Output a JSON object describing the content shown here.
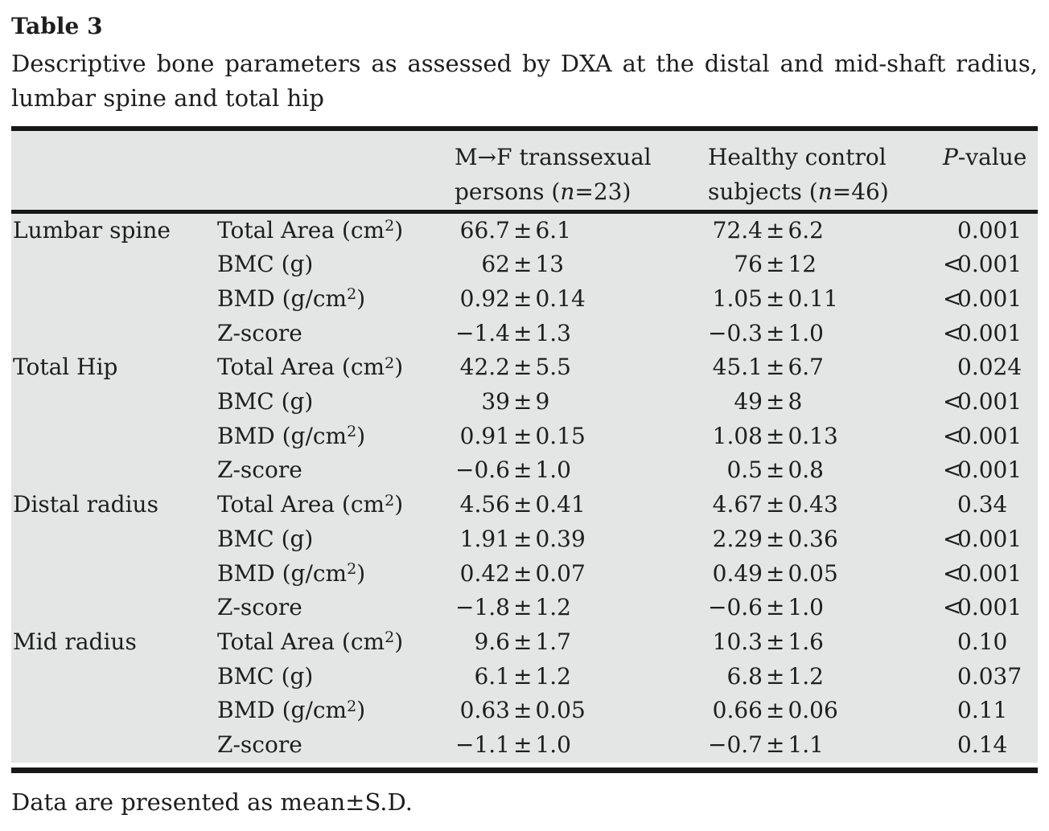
{
  "page": {
    "title": "Table 3",
    "caption_line1": "Descriptive bone parameters as assessed by DXA at the distal and mid-shaft radius,",
    "caption_line2": "lumbar spine and total hip",
    "footnote": "Data are presented as mean±S.D."
  },
  "colors": {
    "table_background": "#e4e5e5",
    "rule": "#171717",
    "text": "#1e1e1e",
    "page_background": "#ffffff"
  },
  "table": {
    "headers": {
      "site": "",
      "parameter": "",
      "mtf_line1": "M→F transsexual",
      "mtf_line2": "persons (*n*=23)",
      "control_line1": "Healthy control",
      "control_line2": "subjects (*n*=46)",
      "pvalue": "*P*-value"
    },
    "groups": [
      {
        "site": "Lumbar spine",
        "rows": [
          {
            "parameter": "Total Area (cm^2)",
            "mtf": "66.7±6.1",
            "control": "72.4±6.2",
            "p": "0.001"
          },
          {
            "parameter": "BMC (g)",
            "mtf": "62±13",
            "control": "76±12",
            "p": "<0.001"
          },
          {
            "parameter": "BMD (g/cm^2)",
            "mtf": "0.92±0.14",
            "control": "1.05±0.11",
            "p": "<0.001"
          },
          {
            "parameter": "Z-score",
            "mtf": "−1.4±1.3",
            "control": "−0.3±1.0",
            "p": "<0.001"
          }
        ]
      },
      {
        "site": "Total Hip",
        "rows": [
          {
            "parameter": "Total Area (cm^2)",
            "mtf": "42.2±5.5",
            "control": "45.1±6.7",
            "p": "0.024"
          },
          {
            "parameter": "BMC (g)",
            "mtf": "39±9",
            "control": "49±8",
            "p": "<0.001"
          },
          {
            "parameter": "BMD (g/cm^2)",
            "mtf": "0.91±0.15",
            "control": "1.08±0.13",
            "p": "<0.001"
          },
          {
            "parameter": "Z-score",
            "mtf": "−0.6±1.0",
            "control": "0.5±0.8",
            "p": "<0.001"
          }
        ]
      },
      {
        "site": "Distal radius",
        "rows": [
          {
            "parameter": "Total Area (cm^2)",
            "mtf": "4.56±0.41",
            "control": "4.67±0.43",
            "p": "0.34"
          },
          {
            "parameter": "BMC (g)",
            "mtf": "1.91±0.39",
            "control": "2.29±0.36",
            "p": "<0.001"
          },
          {
            "parameter": "BMD (g/cm^2)",
            "mtf": "0.42±0.07",
            "control": "0.49±0.05",
            "p": "<0.001"
          },
          {
            "parameter": "Z-score",
            "mtf": "−1.8±1.2",
            "control": "−0.6±1.0",
            "p": "<0.001"
          }
        ]
      },
      {
        "site": "Mid radius",
        "rows": [
          {
            "parameter": "Total Area (cm^2)",
            "mtf": "9.6±1.7",
            "control": "10.3±1.6",
            "p": "0.10"
          },
          {
            "parameter": "BMC (g)",
            "mtf": "6.1±1.2",
            "control": "6.8±1.2",
            "p": "0.037"
          },
          {
            "parameter": "BMD (g/cm^2)",
            "mtf": "0.63±0.05",
            "control": "0.66±0.06",
            "p": "0.11"
          },
          {
            "parameter": "Z-score",
            "mtf": "−1.1±1.0",
            "control": "−0.7±1.1",
            "p": "0.14"
          }
        ]
      }
    ]
  }
}
